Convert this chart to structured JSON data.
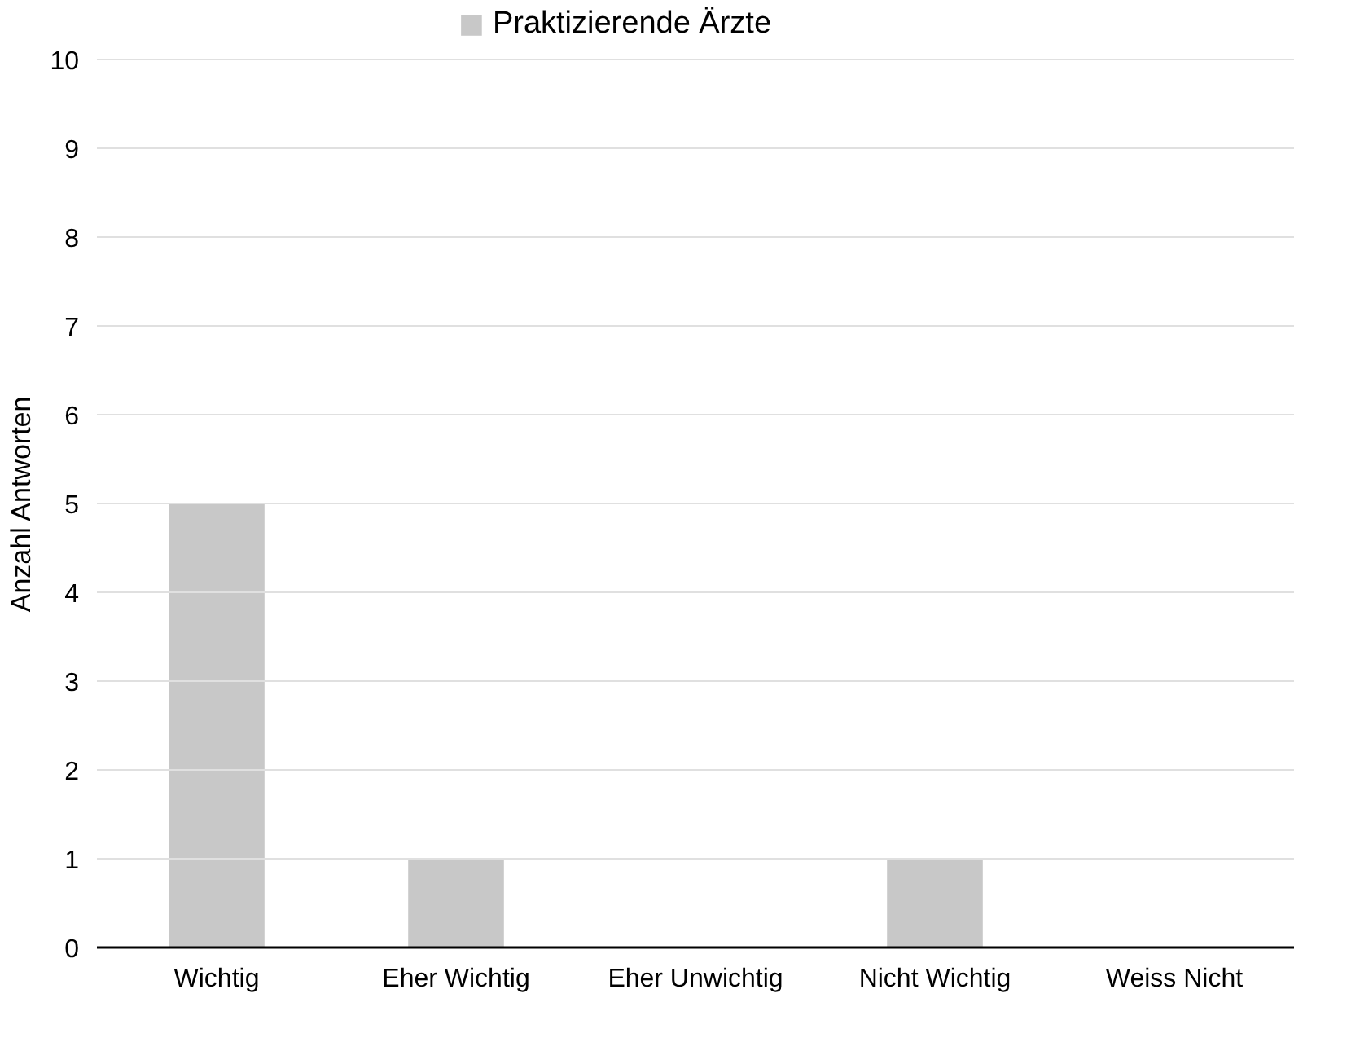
{
  "chart_data": {
    "type": "bar",
    "categories": [
      "Wichtig",
      "Eher Wichtig",
      "Eher Unwichtig",
      "Nicht Wichtig",
      "Weiss Nicht"
    ],
    "series": [
      {
        "name": "Praktizierende Ärzte",
        "color": "#c8c8c8",
        "values": [
          5,
          1,
          0,
          1,
          0
        ]
      }
    ],
    "ylabel": "Anzahl Antworten",
    "ylim": [
      0,
      10
    ],
    "yticks": [
      0,
      1,
      2,
      3,
      4,
      5,
      6,
      7,
      8,
      9,
      10
    ],
    "grid": "y",
    "legend": "top"
  }
}
